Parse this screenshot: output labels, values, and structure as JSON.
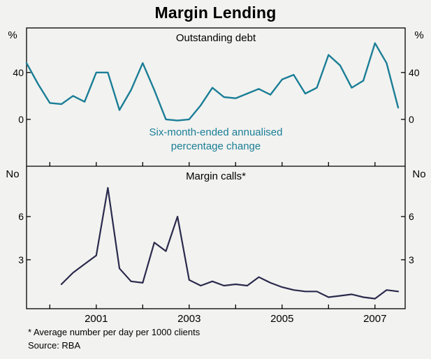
{
  "title": "Margin Lending",
  "footnote": "* Average number per day per 1000 clients",
  "source": "Source: RBA",
  "colors": {
    "top_line": "#1a7e96",
    "bottom_line": "#2a2a4d",
    "annotation": "#1a7e96",
    "frame": "#000000",
    "background": "#f2f2f0"
  },
  "x_axis": {
    "range": [
      1999.5,
      2007.65
    ],
    "ticks": [
      2001,
      2003,
      2005,
      2007
    ],
    "minor_ticks": [
      2000,
      2001,
      2002,
      2003,
      2004,
      2005,
      2006,
      2007
    ]
  },
  "chart_data": [
    {
      "type": "line",
      "panel": "top",
      "title": "Outstanding debt",
      "annotation": [
        "Six-month-ended annualised",
        "percentage change"
      ],
      "unit": "%",
      "ylim": [
        -40,
        78
      ],
      "yticks": [
        0,
        40
      ],
      "x": [
        1999.5,
        1999.75,
        2000.0,
        2000.25,
        2000.5,
        2000.75,
        2001.0,
        2001.25,
        2001.5,
        2001.75,
        2002.0,
        2002.25,
        2002.5,
        2002.75,
        2003.0,
        2003.25,
        2003.5,
        2003.75,
        2004.0,
        2004.25,
        2004.5,
        2004.75,
        2005.0,
        2005.25,
        2005.5,
        2005.75,
        2006.0,
        2006.25,
        2006.5,
        2006.75,
        2007.0,
        2007.25,
        2007.5
      ],
      "values": [
        48,
        30,
        14,
        13,
        20,
        15,
        40,
        40,
        8,
        25,
        48,
        25,
        0,
        -1,
        0,
        12,
        27,
        19,
        18,
        22,
        26,
        21,
        34,
        38,
        22,
        27,
        55,
        46,
        27,
        33,
        65,
        48,
        10
      ]
    },
    {
      "type": "line",
      "panel": "bottom",
      "title": "Margin calls*",
      "unit": "No",
      "ylim": [
        -0.4,
        9.5
      ],
      "yticks": [
        3,
        6
      ],
      "x": [
        2000.25,
        2000.5,
        2000.75,
        2001.0,
        2001.25,
        2001.5,
        2001.75,
        2002.0,
        2002.25,
        2002.5,
        2002.75,
        2003.0,
        2003.25,
        2003.5,
        2003.75,
        2004.0,
        2004.25,
        2004.5,
        2004.75,
        2005.0,
        2005.25,
        2005.5,
        2005.75,
        2006.0,
        2006.25,
        2006.5,
        2006.75,
        2007.0,
        2007.25,
        2007.5
      ],
      "values": [
        1.3,
        2.1,
        2.7,
        3.3,
        8.0,
        2.4,
        1.5,
        1.4,
        4.2,
        3.6,
        6.0,
        1.6,
        1.2,
        1.5,
        1.2,
        1.3,
        1.2,
        1.8,
        1.4,
        1.1,
        0.9,
        0.8,
        0.8,
        0.4,
        0.5,
        0.6,
        0.4,
        0.3,
        0.9,
        0.8
      ]
    }
  ]
}
